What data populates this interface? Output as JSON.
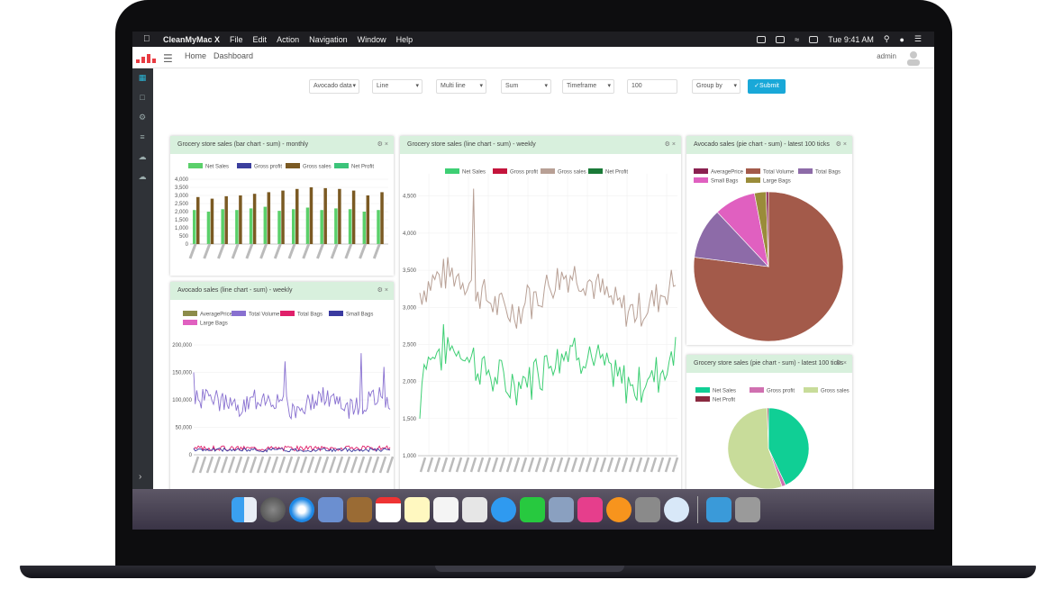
{
  "menubar": {
    "app_name": "CleanMyMac X",
    "items": [
      "File",
      "Edit",
      "Action",
      "Navigation",
      "Window",
      "Help"
    ],
    "clock": "Tue 9:41 AM"
  },
  "header": {
    "nav": [
      "Home",
      "Dashboard"
    ],
    "user": "admin"
  },
  "controls": {
    "datasource": "Avocado data",
    "chart_type": "Line",
    "series_mode": "Multi line",
    "aggregate": "Sum",
    "timeframe": "Timeframe",
    "limit_value": "100",
    "group_by": "Group by",
    "submit_label": "Submit"
  },
  "panels": {
    "bar": {
      "title": "Grocery store sales (bar chart - sum) - monthly"
    },
    "line_weekly": {
      "title": "Grocery store sales (line chart - sum) - weekly"
    },
    "pie_avocado": {
      "title": "Avocado sales (pie chart - sum) - latest 100 ticks"
    },
    "line_avocado": {
      "title": "Avocado sales (line chart - sum) - weekly"
    },
    "pie_grocery": {
      "title": "Grocery store sales (pie chart - sum) - latest 100 ticks"
    }
  },
  "chart_data": [
    {
      "type": "bar",
      "title": "Grocery store sales (bar chart - sum) - monthly",
      "legend": [
        "Net Sales",
        "Gross profit",
        "Gross sales",
        "Net Profit"
      ],
      "colors": {
        "net_sales": "#5ad06a",
        "gross_profit": "#3b3f9d",
        "gross_sales": "#7b5a23",
        "net_profit": "#3cc47a"
      },
      "ylim": [
        0,
        4000
      ],
      "y_ticks": [
        "0",
        "500",
        "1,000",
        "1,500",
        "2,000",
        "2,500",
        "3,000",
        "3,500",
        "4,000"
      ],
      "series": [
        {
          "name": "Net Sales",
          "values": [
            2100,
            2000,
            2150,
            2100,
            2200,
            2300,
            2050,
            2150,
            2250,
            2100,
            2200,
            2150,
            2000,
            2100
          ]
        },
        {
          "name": "Gross sales",
          "values": [
            2900,
            2800,
            2950,
            3000,
            3100,
            3200,
            3300,
            3400,
            3500,
            3450,
            3400,
            3300,
            3000,
            3200
          ]
        }
      ]
    },
    {
      "type": "line",
      "title": "Grocery store sales (line chart - sum) - weekly",
      "legend": [
        "Net Sales",
        "Gross profit",
        "Gross sales",
        "Net Profit"
      ],
      "colors": {
        "net_sales": "#3ecf74",
        "gross_profit": "#c4143c",
        "gross_sales": "#b8a095",
        "net_profit": "#1a7a38"
      },
      "ylim": [
        1000,
        4800
      ],
      "y_ticks": [
        "1,000",
        "1,500",
        "2,000",
        "2,500",
        "3,000",
        "3,500",
        "4,000",
        "4,500"
      ]
    },
    {
      "type": "pie",
      "title": "Avocado sales (pie chart - sum) - latest 100 ticks",
      "legend": [
        "AveragePrice",
        "Total Volume",
        "Total Bags",
        "Small Bags",
        "Large Bags"
      ],
      "slices": [
        {
          "name": "Total Volume",
          "value": 77,
          "color": "#a35a4a"
        },
        {
          "name": "Total Bags",
          "value": 11,
          "color": "#8d6ba8"
        },
        {
          "name": "Small Bags",
          "value": 9,
          "color": "#e060c0"
        },
        {
          "name": "Large Bags",
          "value": 2.5,
          "color": "#9a8c3a"
        },
        {
          "name": "AveragePrice",
          "value": 0.5,
          "color": "#8a2050"
        }
      ]
    },
    {
      "type": "line",
      "title": "Avocado sales (line chart - sum) - weekly",
      "legend": [
        "AveragePrice",
        "Total Volume",
        "Total Bags",
        "Small Bags",
        "Large Bags"
      ],
      "colors": {
        "average_price": "#8c8c4a",
        "total_volume": "#8870d0",
        "total_bags": "#e0206a",
        "small_bags": "#3a3aa0",
        "large_bags": "#e060c0"
      },
      "ylim": [
        0,
        200000
      ],
      "y_ticks": [
        "0",
        "50,000",
        "100,000",
        "150,000",
        "200,000"
      ]
    },
    {
      "type": "pie",
      "title": "Grocery store sales (pie chart - sum) - latest 100 ticks",
      "legend": [
        "Net Sales",
        "Gross profit",
        "Gross sales",
        "Net Profit"
      ],
      "slices": [
        {
          "name": "Net Sales",
          "value": 43,
          "color": "#10cf95"
        },
        {
          "name": "Gross profit",
          "value": 1.5,
          "color": "#d070b0"
        },
        {
          "name": "Gross sales",
          "value": 55,
          "color": "#c8dc9a"
        },
        {
          "name": "Net Profit",
          "value": 0.5,
          "color": "#8a2a40"
        }
      ]
    }
  ]
}
